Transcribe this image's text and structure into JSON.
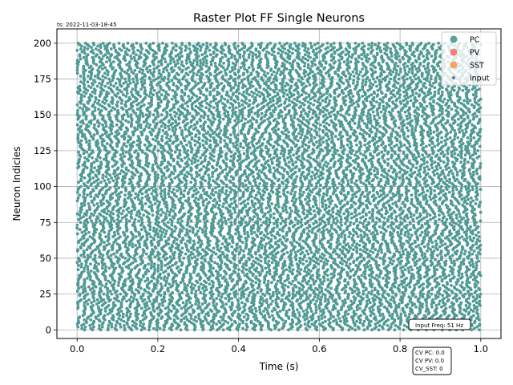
{
  "timestamp": "ts: 2022-11-03-18-45",
  "input_freq_label": "Input Freq: 51 Hz",
  "cv_box": {
    "lines": [
      "CV PC: 0.0",
      "CV PV: 0.0",
      "CV_SST: 0"
    ]
  },
  "colors": {
    "pc": "#5aa19d",
    "pv": "#f08080",
    "sst": "#f4a460",
    "input": "#708090",
    "spike": "#4f9994"
  },
  "chart_data": {
    "type": "scatter",
    "title": "Raster Plot FF Single Neurons",
    "xlabel": "Time (s)",
    "ylabel": "Neuron Indicies",
    "xlim": [
      -0.05,
      1.05
    ],
    "ylim": [
      -6,
      210
    ],
    "xticks": [
      0.0,
      0.2,
      0.4,
      0.6,
      0.8,
      1.0
    ],
    "xtick_labels": [
      "0.0",
      "0.2",
      "0.4",
      "0.6",
      "0.8",
      "1.0"
    ],
    "yticks": [
      0,
      25,
      50,
      75,
      100,
      125,
      150,
      175,
      200
    ],
    "ytick_labels": [
      "0",
      "25",
      "50",
      "75",
      "100",
      "125",
      "150",
      "175",
      "200"
    ],
    "grid": true,
    "legend_placement": "top-right",
    "legend": [
      {
        "name": "PC",
        "marker": "large-dot",
        "color_key": "pc"
      },
      {
        "name": "PV",
        "marker": "large-dot",
        "color_key": "pv"
      },
      {
        "name": "SST",
        "marker": "large-dot",
        "color_key": "sst"
      },
      {
        "name": "input",
        "marker": "small-dot",
        "color_key": "input"
      }
    ],
    "series": [
      {
        "name": "PC",
        "neuron_count": 201,
        "time_range": [
          0.0,
          1.0
        ],
        "approx_rate_hz": 51
      }
    ]
  }
}
